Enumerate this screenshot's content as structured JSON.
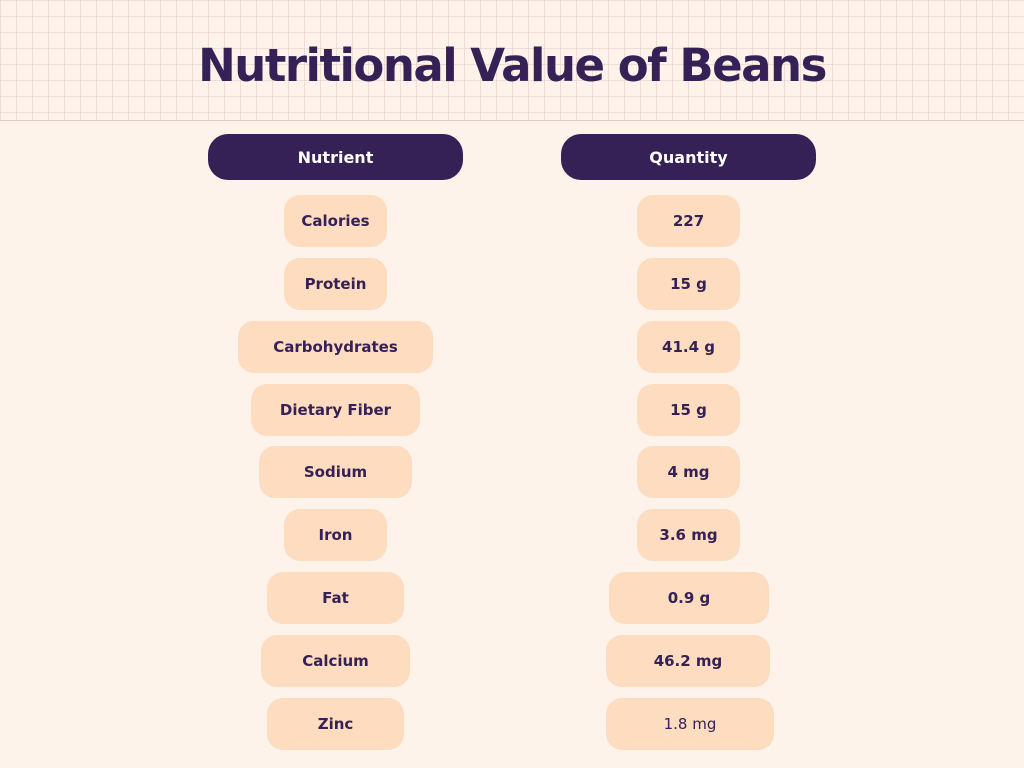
{
  "title": "Nutritional Value of Beans",
  "table": {
    "headers": [
      "Nutrient",
      "Quantity"
    ],
    "rows": [
      {
        "nutrient": "Calories",
        "quantity": "227"
      },
      {
        "nutrient": "Protein",
        "quantity": "15 g"
      },
      {
        "nutrient": "Carbohydrates",
        "quantity": "41.4 g"
      },
      {
        "nutrient": "Dietary Fiber",
        "quantity": "15 g"
      },
      {
        "nutrient": "Sodium",
        "quantity": "4 mg"
      },
      {
        "nutrient": "Iron",
        "quantity": "3.6 mg"
      },
      {
        "nutrient": "Fat",
        "quantity": "0.9 g"
      },
      {
        "nutrient": "Calcium",
        "quantity": "46.2 mg"
      },
      {
        "nutrient": "Zinc",
        "quantity": "1.8 mg"
      }
    ]
  },
  "colors": {
    "background": "#fdf3ea",
    "accent": "#352155",
    "pill": "#fddcbf"
  }
}
